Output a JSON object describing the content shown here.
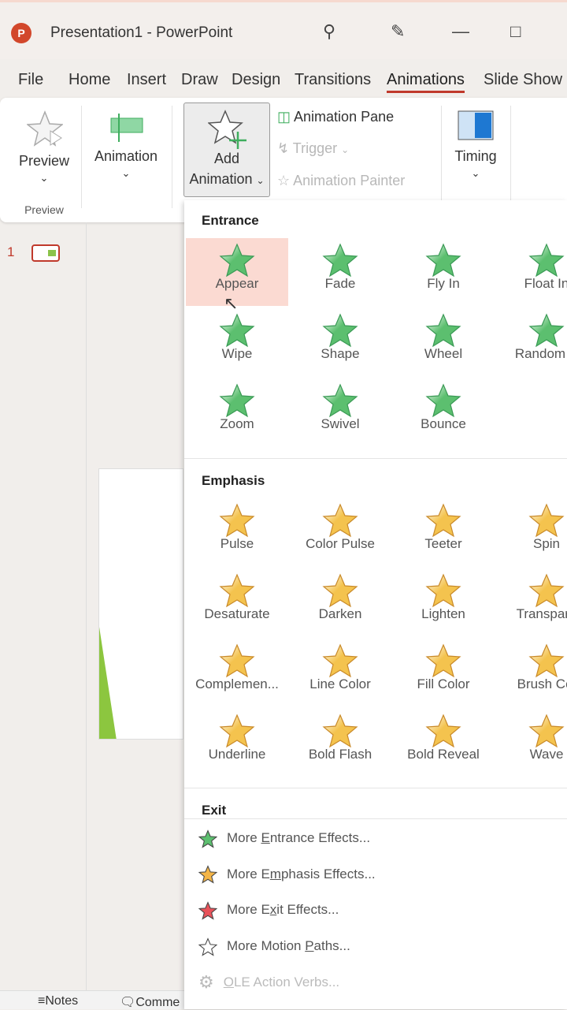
{
  "app": {
    "title": "Presentation1  -  PowerPoint",
    "logo": "P"
  },
  "titlebar_icons": [
    "search-icon",
    "designer-icon",
    "minimize-icon",
    "maximize-icon"
  ],
  "tabs": [
    {
      "label": "File"
    },
    {
      "label": "Home"
    },
    {
      "label": "Insert"
    },
    {
      "label": "Draw"
    },
    {
      "label": "Design"
    },
    {
      "label": "Transitions"
    },
    {
      "label": "Animations",
      "active": true
    },
    {
      "label": "Slide Show"
    }
  ],
  "ribbon": {
    "preview": "Preview",
    "preview_group": "Preview",
    "animation": "Animation",
    "add_line1": "Add",
    "add_line2": "Animation",
    "animation_pane": "Animation Pane",
    "trigger": "Trigger",
    "animation_painter": "Animation Painter",
    "timing": "Timing"
  },
  "slides": {
    "number": "1"
  },
  "status": {
    "notes": "Notes",
    "comments": "Comme"
  },
  "menu": {
    "entrance_title": "Entrance",
    "entrance": [
      "Appear",
      "Fade",
      "Fly In",
      "Float In",
      "Wipe",
      "Shape",
      "Wheel",
      "Random B",
      "Zoom",
      "Swivel",
      "Bounce"
    ],
    "emphasis_title": "Emphasis",
    "emphasis": [
      "Pulse",
      "Color Pulse",
      "Teeter",
      "Spin",
      "Desaturate",
      "Darken",
      "Lighten",
      "Transpare",
      "Complemen...",
      "Line Color",
      "Fill Color",
      "Brush Col",
      "Underline",
      "Bold Flash",
      "Bold Reveal",
      "Wave"
    ],
    "exit_title": "Exit",
    "more": [
      {
        "pre": "More ",
        "key": "E",
        "post": "ntrance Effects...",
        "color": "#5cbf6f"
      },
      {
        "pre": "More E",
        "key": "m",
        "post": "phasis Effects...",
        "color": "#f4b547"
      },
      {
        "pre": "More E",
        "key": "x",
        "post": "it Effects...",
        "color": "#e8525a"
      },
      {
        "pre": "More Motion ",
        "key": "P",
        "post": "aths...",
        "color": "#ffffff"
      },
      {
        "pre": "",
        "key": "O",
        "post": "LE Action Verbs...",
        "color": "#cccccc",
        "disabled": true
      }
    ],
    "selected": "Appear"
  },
  "colors": {
    "entrance": "#5cbf6f",
    "emphasis": "#f4c34e",
    "accent": "#c0392b"
  }
}
